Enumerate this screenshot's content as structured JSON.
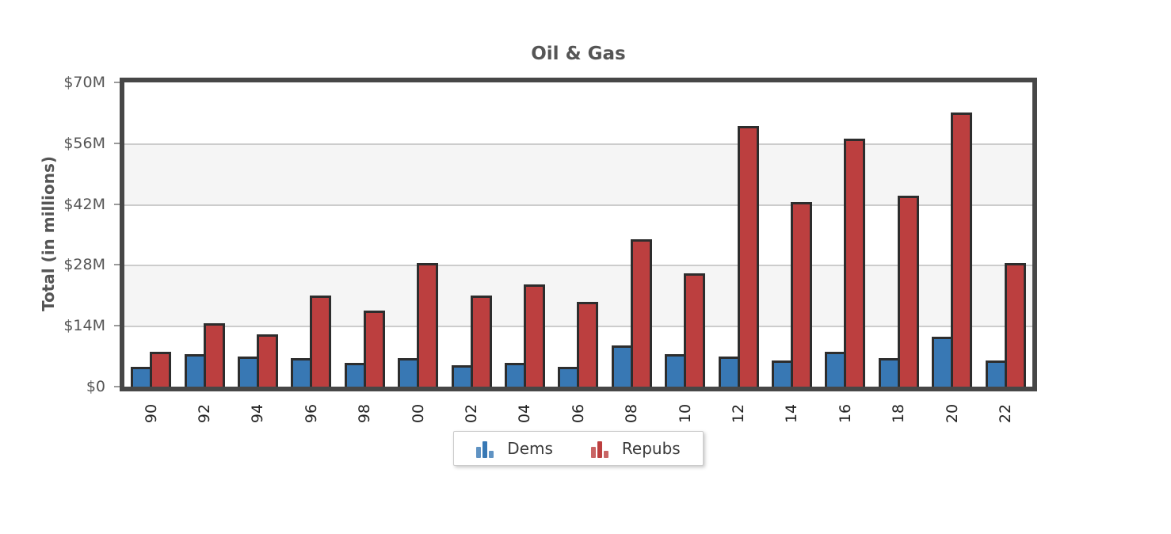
{
  "chart_data": {
    "type": "bar",
    "title": "Oil & Gas",
    "xlabel": "",
    "ylabel": "Total (in millions)",
    "categories": [
      "90",
      "92",
      "94",
      "96",
      "98",
      "00",
      "02",
      "04",
      "06",
      "08",
      "10",
      "12",
      "14",
      "16",
      "18",
      "20",
      "22"
    ],
    "series": [
      {
        "name": "Dems",
        "color": "#3878b4",
        "values": [
          4.5,
          7.5,
          7,
          6.5,
          5.5,
          6.5,
          5,
          5.5,
          4.5,
          9.5,
          7.5,
          7,
          6,
          8,
          6.5,
          11.5,
          6
        ]
      },
      {
        "name": "Repubs",
        "color": "#bc3f3f",
        "values": [
          8,
          14.5,
          12,
          21,
          17.5,
          28.5,
          21,
          23.5,
          19.5,
          34,
          26,
          60,
          42.5,
          57,
          44,
          63,
          28.5
        ]
      }
    ],
    "ylim": [
      0,
      70
    ],
    "ytick_labels": [
      "$70M",
      "$56M",
      "$42M",
      "$28M",
      "$14M",
      "$0"
    ],
    "grid": true,
    "legend_position": "bottom",
    "colors": {
      "band": "#f5f5f5",
      "gridline": "#cccccc",
      "frame": "#474747",
      "bar_border": "#2d2d2d",
      "title_text": "#555555",
      "y_text": "#555555",
      "x_text": "#222222"
    }
  },
  "legend": {
    "items": [
      {
        "label": "Dems",
        "color": "#3878b4"
      },
      {
        "label": "Repubs",
        "color": "#bc3f3f"
      }
    ]
  }
}
